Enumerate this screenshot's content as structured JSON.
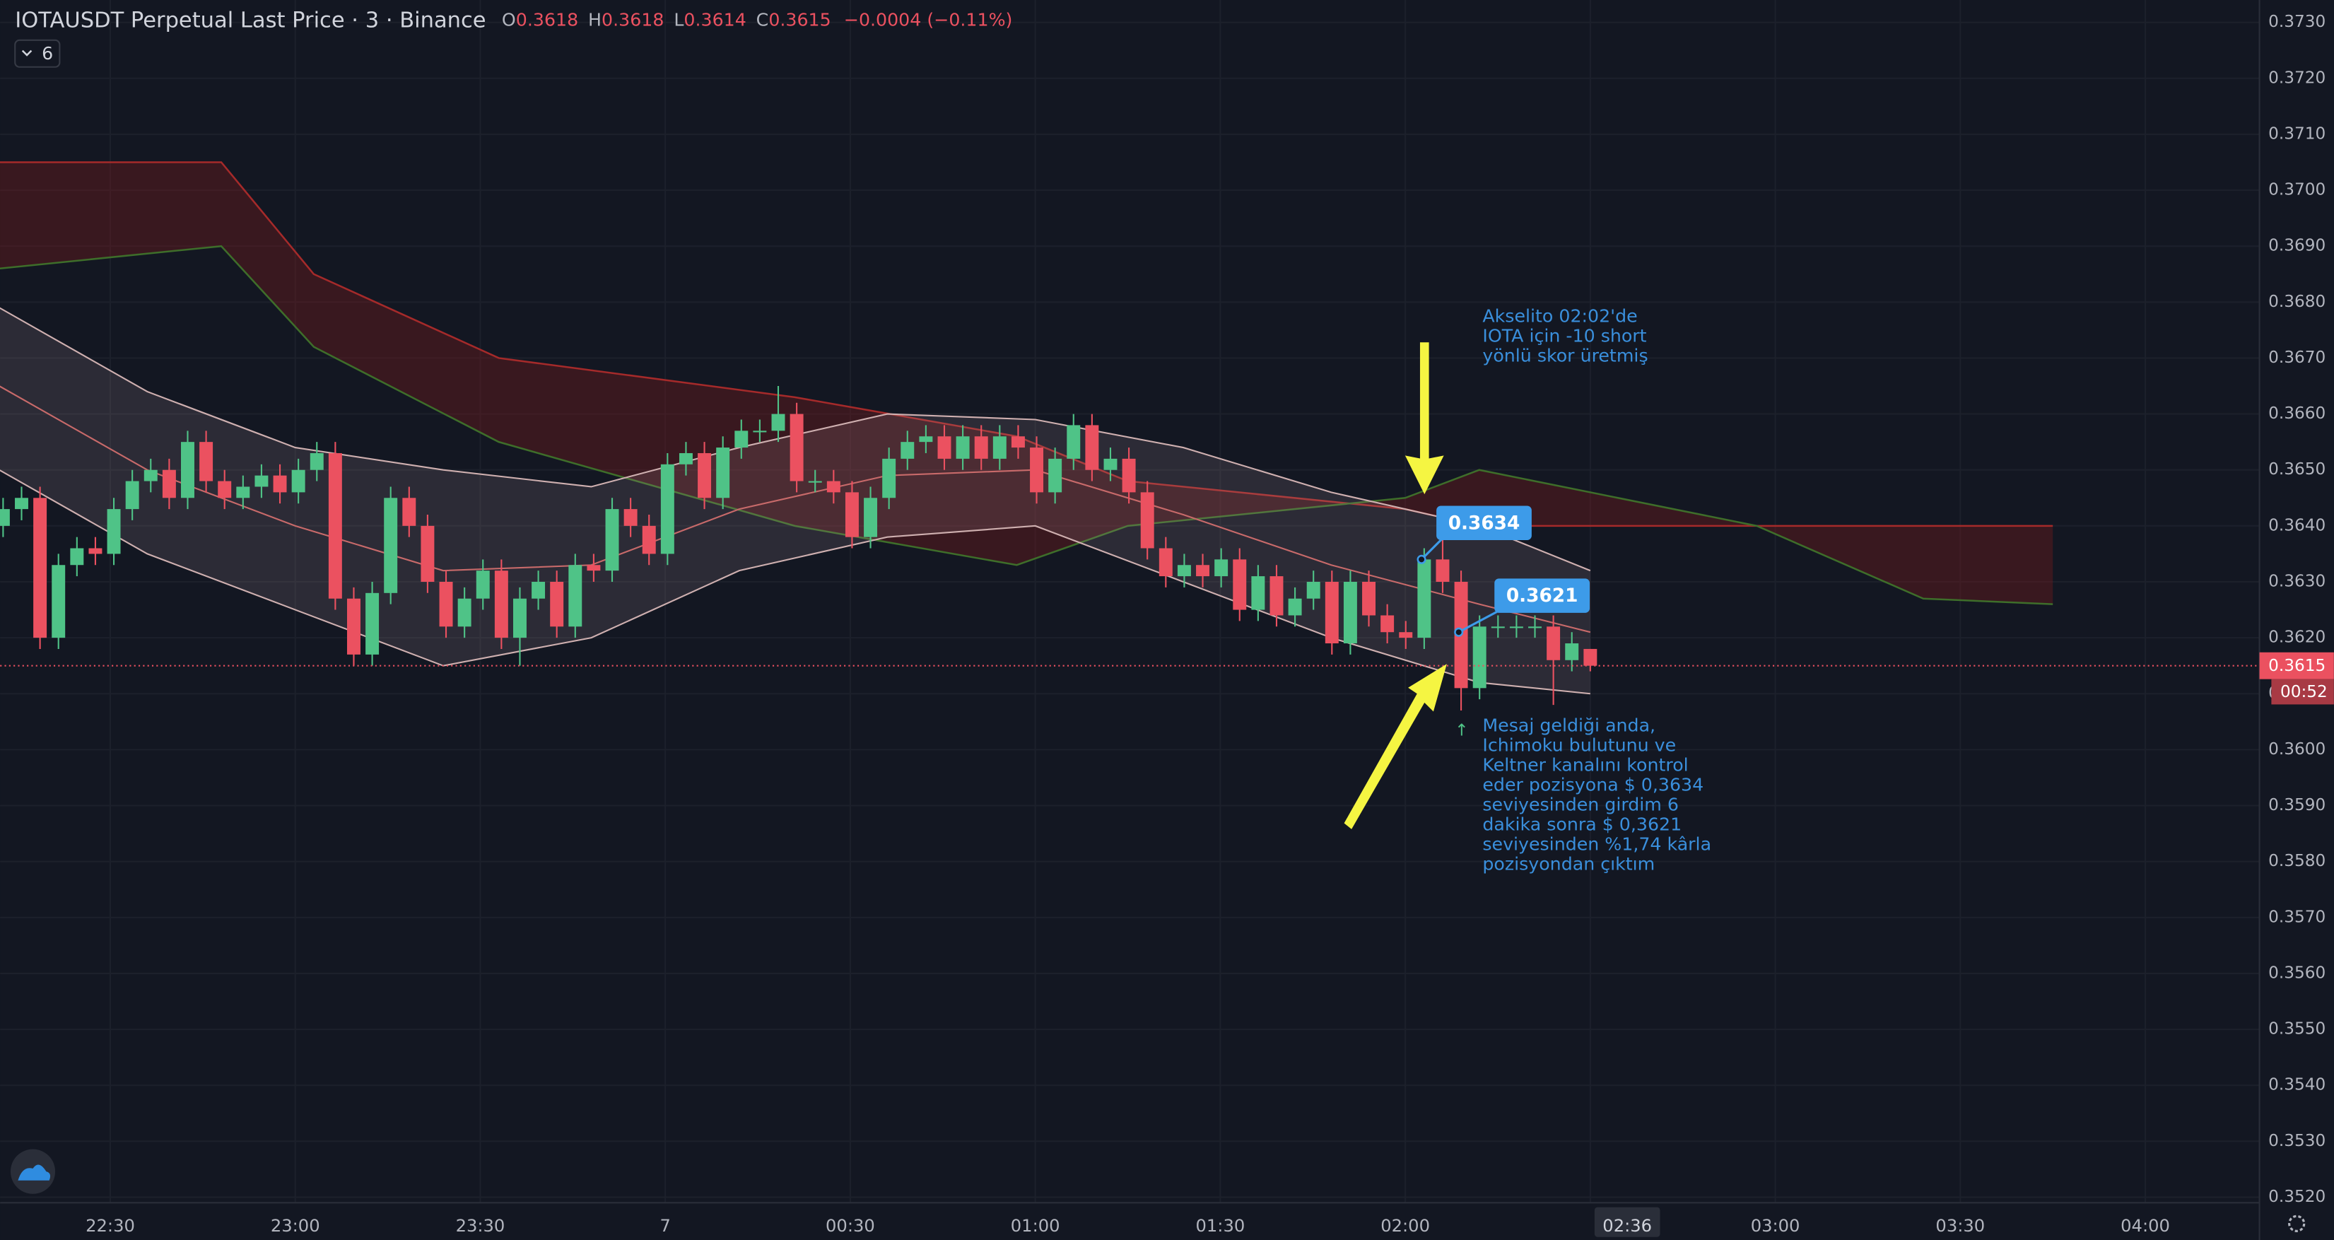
{
  "header": {
    "title": "IOTAUSDT Perpetual Last Price · 3 · Binance",
    "o_label": "O",
    "h_label": "H",
    "l_label": "L",
    "c_label": "C",
    "change": "−0.0004 (−0.11%)",
    "indicator_count": 6
  },
  "chart_data": {
    "type": "candlestick",
    "up_color": "#4fc387",
    "down_color": "#eb5160",
    "open": [
      0.364,
      0.3643,
      0.3645,
      0.362,
      0.3633,
      0.3636,
      0.3635,
      0.3643,
      0.3648,
      0.365,
      0.3645,
      0.3655,
      0.3648,
      0.3645,
      0.3647,
      0.3649,
      0.3646,
      0.365,
      0.3653,
      0.3627,
      0.3617,
      0.3628,
      0.3645,
      0.364,
      0.363,
      0.3622,
      0.3627,
      0.3632,
      0.362,
      0.3627,
      0.363,
      0.3622,
      0.3633,
      0.3632,
      0.3643,
      0.364,
      0.3635,
      0.3651,
      0.3653,
      0.3645,
      0.3654,
      0.3657,
      0.3657,
      0.366,
      0.3648,
      0.3648,
      0.3646,
      0.3638,
      0.3645,
      0.3652,
      0.3655,
      0.3656,
      0.3652,
      0.3656,
      0.3652,
      0.3656,
      0.3654,
      0.3646,
      0.3652,
      0.3658,
      0.365,
      0.3652,
      0.3646,
      0.3636,
      0.3631,
      0.3633,
      0.3631,
      0.3634,
      0.3625,
      0.3631,
      0.3624,
      0.3627,
      0.363,
      0.3619,
      0.363,
      0.3624,
      0.3621,
      0.362,
      0.3634,
      0.363,
      0.3611,
      0.3622,
      0.3622,
      0.3622,
      0.3622,
      0.3616,
      0.3618
    ],
    "high": [
      0.3645,
      0.3647,
      0.3647,
      0.3635,
      0.3638,
      0.3638,
      0.3645,
      0.365,
      0.3652,
      0.3652,
      0.3657,
      0.3657,
      0.365,
      0.3649,
      0.3651,
      0.3651,
      0.3652,
      0.3655,
      0.3655,
      0.3629,
      0.363,
      0.3647,
      0.3647,
      0.3642,
      0.3632,
      0.3629,
      0.3634,
      0.3634,
      0.3629,
      0.3632,
      0.3632,
      0.3635,
      0.3635,
      0.3645,
      0.3645,
      0.3642,
      0.3653,
      0.3655,
      0.3655,
      0.3656,
      0.3659,
      0.3659,
      0.3665,
      0.3662,
      0.365,
      0.365,
      0.3648,
      0.3647,
      0.3654,
      0.3657,
      0.3658,
      0.3658,
      0.3658,
      0.3658,
      0.3658,
      0.3658,
      0.3656,
      0.3654,
      0.366,
      0.366,
      0.3654,
      0.3654,
      0.3648,
      0.3638,
      0.3635,
      0.3635,
      0.3636,
      0.3636,
      0.3633,
      0.3633,
      0.3629,
      0.3632,
      0.3632,
      0.3632,
      0.3632,
      0.3626,
      0.3623,
      0.3636,
      0.364,
      0.3632,
      0.3624,
      0.3624,
      0.3624,
      0.3624,
      0.3624,
      0.3621,
      0.3618
    ],
    "low": [
      0.3638,
      0.3641,
      0.3618,
      0.3618,
      0.3631,
      0.3633,
      0.3633,
      0.3641,
      0.3646,
      0.3643,
      0.3643,
      0.3646,
      0.3643,
      0.3643,
      0.3645,
      0.3644,
      0.3644,
      0.3648,
      0.3625,
      0.3615,
      0.3615,
      0.3626,
      0.3638,
      0.3628,
      0.362,
      0.362,
      0.3625,
      0.3618,
      0.3615,
      0.3625,
      0.362,
      0.362,
      0.363,
      0.363,
      0.3638,
      0.3633,
      0.3633,
      0.3649,
      0.3643,
      0.3643,
      0.3652,
      0.3655,
      0.3655,
      0.3646,
      0.3646,
      0.3644,
      0.3636,
      0.3636,
      0.3643,
      0.365,
      0.3653,
      0.365,
      0.365,
      0.365,
      0.365,
      0.3652,
      0.3644,
      0.3644,
      0.365,
      0.3648,
      0.3648,
      0.3644,
      0.3634,
      0.3629,
      0.3629,
      0.3629,
      0.3629,
      0.3623,
      0.3623,
      0.3622,
      0.3622,
      0.3625,
      0.3617,
      0.3617,
      0.3622,
      0.3619,
      0.3618,
      0.3618,
      0.3628,
      0.3607,
      0.3609,
      0.362,
      0.362,
      0.362,
      0.3608,
      0.3614,
      0.3614
    ],
    "close": [
      0.3643,
      0.3645,
      0.362,
      0.3633,
      0.3636,
      0.3635,
      0.3643,
      0.3648,
      0.365,
      0.3645,
      0.3655,
      0.3648,
      0.3645,
      0.3647,
      0.3649,
      0.3646,
      0.365,
      0.3653,
      0.3627,
      0.3617,
      0.3628,
      0.3645,
      0.364,
      0.363,
      0.3622,
      0.3627,
      0.3632,
      0.362,
      0.3627,
      0.363,
      0.3622,
      0.3633,
      0.3632,
      0.3643,
      0.364,
      0.3635,
      0.3651,
      0.3653,
      0.3645,
      0.3654,
      0.3657,
      0.3657,
      0.366,
      0.3648,
      0.3648,
      0.3646,
      0.3638,
      0.3645,
      0.3652,
      0.3655,
      0.3656,
      0.3652,
      0.3656,
      0.3652,
      0.3656,
      0.3654,
      0.3646,
      0.3652,
      0.3658,
      0.365,
      0.3652,
      0.3646,
      0.3636,
      0.3631,
      0.3633,
      0.3631,
      0.3634,
      0.3625,
      0.3631,
      0.3624,
      0.3627,
      0.363,
      0.3619,
      0.363,
      0.3624,
      0.3621,
      0.362,
      0.3634,
      0.363,
      0.3611,
      0.3622,
      0.3622,
      0.3622,
      0.3622,
      0.3616,
      0.3619,
      0.3615
    ],
    "ylim": [
      0.3519,
      0.3734
    ],
    "yticks": [
      {
        "value": 0.352,
        "label": "0.3520"
      },
      {
        "value": 0.353,
        "label": "0.3530"
      },
      {
        "value": 0.354,
        "label": "0.3540"
      },
      {
        "value": 0.355,
        "label": "0.3550"
      },
      {
        "value": 0.356,
        "label": "0.3560"
      },
      {
        "value": 0.357,
        "label": "0.3570"
      },
      {
        "value": 0.358,
        "label": "0.3580"
      },
      {
        "value": 0.359,
        "label": "0.3590"
      },
      {
        "value": 0.36,
        "label": "0.3600"
      },
      {
        "value": 0.361,
        "label": "0.3610"
      },
      {
        "value": 0.362,
        "label": "0.3620"
      },
      {
        "value": 0.363,
        "label": "0.3630"
      },
      {
        "value": 0.364,
        "label": "0.3640"
      },
      {
        "value": 0.365,
        "label": "0.3650"
      },
      {
        "value": 0.366,
        "label": "0.3660"
      },
      {
        "value": 0.367,
        "label": "0.3670"
      },
      {
        "value": 0.368,
        "label": "0.3680"
      },
      {
        "value": 0.369,
        "label": "0.3690"
      },
      {
        "value": 0.37,
        "label": "0.3700"
      },
      {
        "value": 0.371,
        "label": "0.3710"
      },
      {
        "value": 0.372,
        "label": "0.3720"
      },
      {
        "value": 0.373,
        "label": "0.3730"
      }
    ],
    "xtick_labels": [
      "22:30",
      "23:00",
      "23:30",
      "7",
      "00:30",
      "01:00",
      "01:30",
      "02:00",
      null,
      "03:00",
      "03:30",
      "04:00"
    ],
    "current_time_label": "02:36",
    "countdown": "00:52",
    "trades": [
      0.3634,
      0.3621
    ],
    "exit_marker": "↑",
    "ichimoku": {
      "x": [
        "22:12",
        "22:48",
        "23:03",
        "23:33",
        "00:21",
        "00:57",
        "01:15",
        "02:00",
        "02:12",
        "02:57",
        "03:24",
        "03:45"
      ],
      "span_a": [
        0.3686,
        0.369,
        0.3672,
        0.3655,
        0.364,
        0.3633,
        0.364,
        0.3645,
        0.365,
        0.364,
        0.3627,
        0.3626
      ],
      "span_b": [
        0.3705,
        0.3705,
        0.3685,
        0.367,
        0.3663,
        0.3656,
        0.3648,
        0.3643,
        0.364,
        0.364,
        0.364,
        0.364
      ]
    },
    "keltner": {
      "x": [
        "22:12",
        "22:36",
        "23:00",
        "23:24",
        "23:48",
        "00:12",
        "00:36",
        "01:00",
        "01:24",
        "01:48",
        "02:12",
        "02:30"
      ],
      "upper": [
        0.3679,
        0.3664,
        0.3654,
        0.365,
        0.3647,
        0.3654,
        0.366,
        0.3659,
        0.3654,
        0.3646,
        0.364,
        0.3632
      ],
      "basis": [
        0.3665,
        0.365,
        0.364,
        0.3632,
        0.3633,
        0.3643,
        0.3649,
        0.365,
        0.3642,
        0.3633,
        0.3626,
        0.3621
      ],
      "lower": [
        0.365,
        0.3635,
        0.3625,
        0.3615,
        0.362,
        0.3632,
        0.3638,
        0.364,
        0.363,
        0.362,
        0.3612,
        0.361
      ]
    },
    "annotation_top": [
      "Akselito 02:02'de",
      "IOTA için -10 short",
      "yönlü skor üretmiş"
    ],
    "annotation_bottom": [
      "Mesaj geldiği anda,",
      "Ichimoku bulutunu ve",
      "Keltner kanalını kontrol",
      "eder pozisyona $ 0,3634",
      "seviyesinden girdim 6",
      "dakika sonra $ 0,3621",
      "seviyesinden %1,74 kârla",
      "pozisyondan çıktım"
    ]
  }
}
